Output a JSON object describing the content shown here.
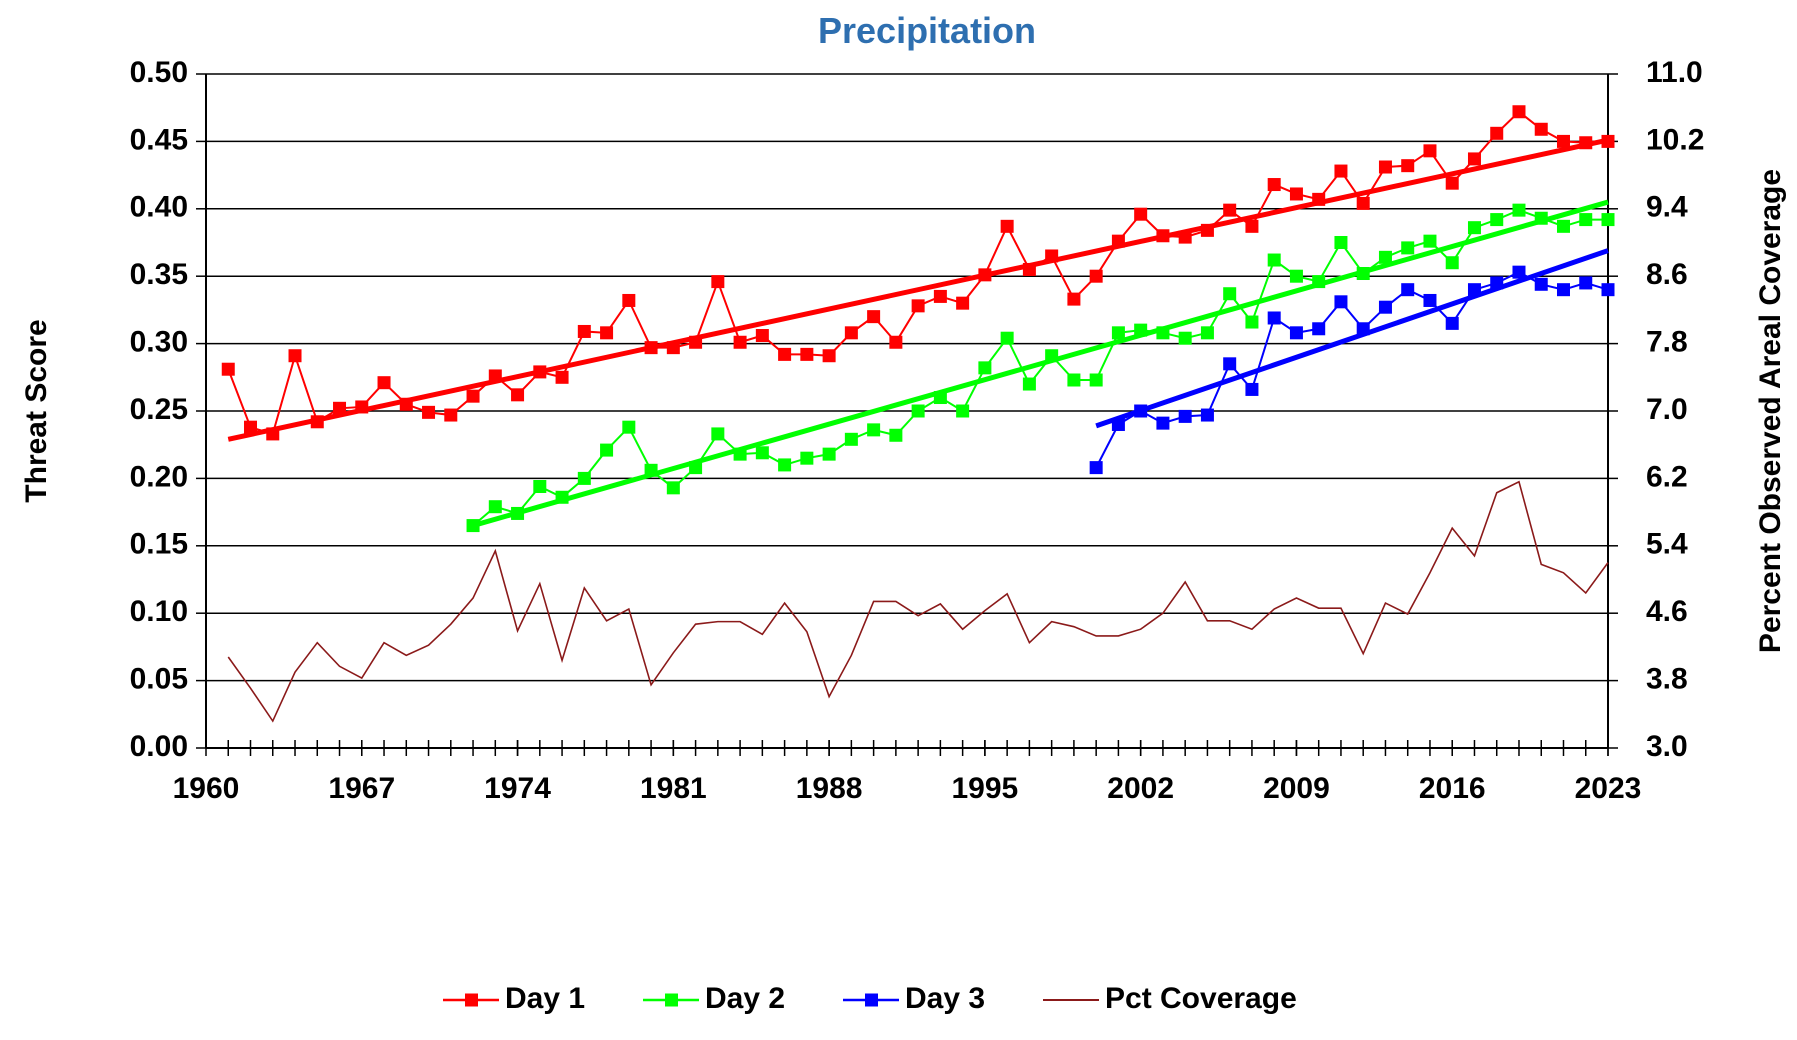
{
  "chart_data": {
    "type": "line",
    "title": "Precipitation",
    "y_label": "Threat Score",
    "y2_label": "Percent Observed Areal Coverage",
    "x": [
      1961,
      1962,
      1963,
      1964,
      1965,
      1966,
      1967,
      1968,
      1969,
      1970,
      1971,
      1972,
      1973,
      1974,
      1975,
      1976,
      1977,
      1978,
      1979,
      1980,
      1981,
      1982,
      1983,
      1984,
      1985,
      1986,
      1987,
      1988,
      1989,
      1990,
      1991,
      1992,
      1993,
      1994,
      1995,
      1996,
      1997,
      1998,
      1999,
      2000,
      2001,
      2002,
      2003,
      2004,
      2005,
      2006,
      2007,
      2008,
      2009,
      2010,
      2011,
      2012,
      2013,
      2014,
      2015,
      2016,
      2017,
      2018,
      2019,
      2020,
      2021,
      2022,
      2023
    ],
    "series": [
      {
        "name": "Day 1",
        "color": "#ff0000",
        "marker": true,
        "values": [
          0.281,
          0.238,
          0.233,
          0.291,
          0.242,
          0.252,
          0.253,
          0.271,
          0.255,
          0.249,
          0.247,
          0.261,
          0.276,
          0.262,
          0.279,
          0.275,
          0.309,
          0.308,
          0.332,
          0.297,
          0.297,
          0.301,
          0.346,
          0.301,
          0.306,
          0.292,
          0.292,
          0.291,
          0.308,
          0.32,
          0.301,
          0.328,
          0.335,
          0.33,
          0.351,
          0.387,
          0.355,
          0.365,
          0.333,
          0.35,
          0.376,
          0.396,
          0.38,
          0.379,
          0.384,
          0.399,
          0.387,
          0.418,
          0.411,
          0.407,
          0.428,
          0.404,
          0.431,
          0.432,
          0.443,
          0.419,
          0.437,
          0.456,
          0.472,
          0.459,
          0.45,
          0.449,
          0.45
        ]
      },
      {
        "name": "Day 2",
        "color": "#00ff00",
        "marker": true,
        "values": [
          null,
          null,
          null,
          null,
          null,
          null,
          null,
          null,
          null,
          null,
          null,
          0.165,
          0.179,
          0.174,
          0.194,
          0.186,
          0.2,
          0.221,
          0.238,
          0.206,
          0.193,
          0.208,
          0.233,
          0.218,
          0.219,
          0.21,
          0.215,
          0.218,
          0.229,
          0.236,
          0.232,
          0.25,
          0.26,
          0.25,
          0.282,
          0.304,
          0.27,
          0.291,
          0.273,
          0.273,
          0.308,
          0.31,
          0.308,
          0.304,
          0.308,
          0.337,
          0.316,
          0.362,
          0.35,
          0.346,
          0.375,
          0.352,
          0.364,
          0.371,
          0.376,
          0.36,
          0.386,
          0.392,
          0.399,
          0.393,
          0.387,
          0.392,
          0.392
        ]
      },
      {
        "name": "Day 3",
        "color": "#0000ff",
        "marker": true,
        "values": [
          null,
          null,
          null,
          null,
          null,
          null,
          null,
          null,
          null,
          null,
          null,
          null,
          null,
          null,
          null,
          null,
          null,
          null,
          null,
          null,
          null,
          null,
          null,
          null,
          null,
          null,
          null,
          null,
          null,
          null,
          null,
          null,
          null,
          null,
          null,
          null,
          null,
          null,
          null,
          0.208,
          0.24,
          0.25,
          0.241,
          0.246,
          0.247,
          0.285,
          0.266,
          0.319,
          0.308,
          0.311,
          0.331,
          0.311,
          0.327,
          0.34,
          0.332,
          0.315,
          0.34,
          0.345,
          0.353,
          0.344,
          0.34,
          0.345,
          0.34
        ]
      },
      {
        "name": "Pct Coverage",
        "color": "#8b1a1a",
        "marker": false,
        "axis": "y2",
        "values": [
          4.08,
          3.71,
          3.32,
          3.9,
          4.25,
          3.97,
          3.83,
          4.25,
          4.1,
          4.22,
          4.47,
          4.78,
          5.34,
          4.39,
          4.95,
          4.04,
          4.9,
          4.51,
          4.65,
          3.75,
          4.13,
          4.47,
          4.5,
          4.5,
          4.35,
          4.72,
          4.38,
          3.61,
          4.1,
          4.74,
          4.74,
          4.57,
          4.71,
          4.41,
          4.63,
          4.83,
          4.25,
          4.5,
          4.44,
          4.33,
          4.33,
          4.41,
          4.6,
          4.97,
          4.51,
          4.51,
          4.41,
          4.65,
          4.78,
          4.66,
          4.66,
          4.12,
          4.72,
          4.59,
          5.08,
          5.61,
          5.28,
          6.03,
          6.16,
          5.18,
          5.08,
          4.84,
          5.2
        ]
      }
    ],
    "trendlines": [
      {
        "color": "#ff0000",
        "x": [
          1961,
          2023
        ],
        "values": [
          0.229,
          0.451
        ]
      },
      {
        "color": "#00ff00",
        "x": [
          1972,
          2023
        ],
        "values": [
          0.165,
          0.405
        ]
      },
      {
        "color": "#0000ff",
        "x": [
          2000,
          2023
        ],
        "values": [
          0.239,
          0.369
        ]
      }
    ],
    "xlim": [
      1960,
      2023
    ],
    "xticks": [
      1960,
      1967,
      1974,
      1981,
      1988,
      1995,
      2002,
      2009,
      2016,
      2023
    ],
    "ylim": [
      0,
      0.5
    ],
    "yticks": [
      {
        "value": 0,
        "label": "0.00"
      },
      0.05,
      {
        "value": 0.1,
        "label": "0.10"
      },
      0.15,
      {
        "value": 0.2,
        "label": "0.20"
      },
      0.25,
      {
        "value": 0.3,
        "label": "0.30"
      },
      0.35,
      {
        "value": 0.4,
        "label": "0.40"
      },
      0.45,
      {
        "value": 0.5,
        "label": "0.50"
      }
    ],
    "y2lim": [
      3,
      11
    ],
    "y2ticks": [
      {
        "value": 3,
        "label": "3.0"
      },
      3.8,
      4.6,
      5.4,
      6.2,
      {
        "value": 7,
        "label": "7.0"
      },
      7.8,
      8.6,
      9.4,
      10.2,
      {
        "value": 11,
        "label": "11.0"
      }
    ],
    "grid": true,
    "legend": "bottom"
  }
}
